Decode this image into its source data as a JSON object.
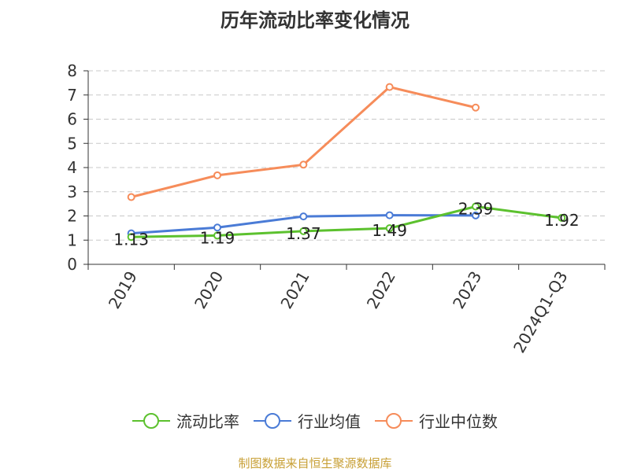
{
  "title": "历年流动比率变化情况",
  "source": "制图数据来自恒生聚源数据库",
  "chart_data": {
    "type": "line",
    "title": "历年流动比率变化情况",
    "categories": [
      "2019",
      "2020",
      "2021",
      "2022",
      "2023",
      "2024Q1-Q3"
    ],
    "ylim": [
      0,
      8
    ],
    "yticks": [
      0,
      1,
      2,
      3,
      4,
      5,
      6,
      7,
      8
    ],
    "grid": true,
    "legend_position": "bottom",
    "series": [
      {
        "name": "流动比率",
        "color": "#5cc12e",
        "values": [
          1.13,
          1.19,
          1.37,
          1.49,
          2.39,
          1.92
        ],
        "labels": [
          "1.13",
          "1.19",
          "1.37",
          "1.49",
          "2.39",
          "1.92"
        ]
      },
      {
        "name": "行业均值",
        "color": "#4a7bd6",
        "values": [
          1.28,
          1.52,
          1.98,
          2.03,
          2.02,
          null
        ]
      },
      {
        "name": "行业中位数",
        "color": "#f68c5a",
        "values": [
          2.78,
          3.68,
          4.12,
          7.33,
          6.48,
          null
        ]
      }
    ]
  }
}
